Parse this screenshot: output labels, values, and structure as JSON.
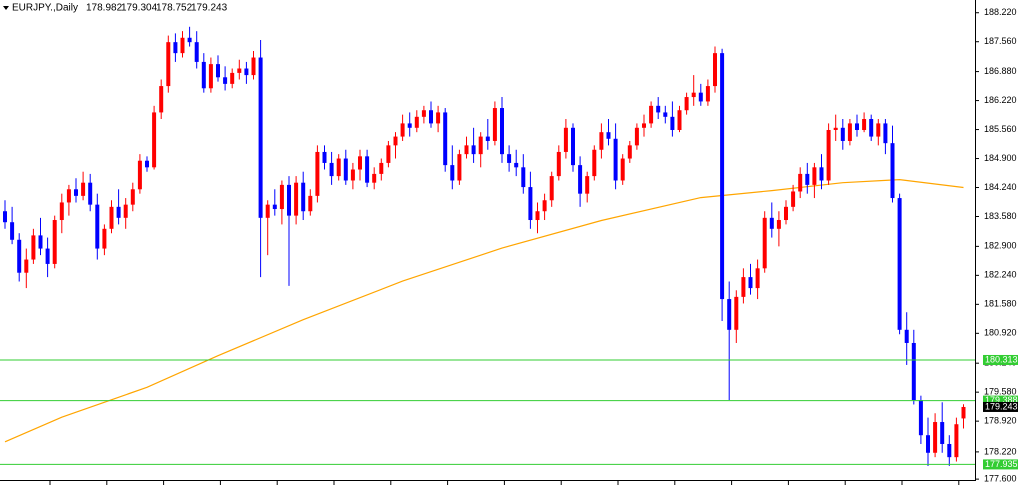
{
  "chart_data": {
    "type": "candlestick",
    "symbol": "EURJPY.,Daily",
    "up_color": "#ff0000",
    "down_color": "#0000ff",
    "ma_color": "#ffa500",
    "level_color": "#32cd32",
    "ylim": [
      177.58,
      188.51
    ],
    "yticks": [
      {
        "value": 188.22,
        "label": "188.220"
      },
      {
        "value": 187.56,
        "label": "187.560"
      },
      {
        "value": 186.88,
        "label": "186.880"
      },
      {
        "value": 186.22,
        "label": "186.220"
      },
      {
        "value": 185.56,
        "label": "185.560"
      },
      {
        "value": 184.9,
        "label": "184.900"
      },
      {
        "value": 184.24,
        "label": "184.240"
      },
      {
        "value": 183.58,
        "label": "183.580"
      },
      {
        "value": 182.9,
        "label": "182.900"
      },
      {
        "value": 182.24,
        "label": "182.240"
      },
      {
        "value": 181.58,
        "label": "181.580"
      },
      {
        "value": 180.92,
        "label": "180.920"
      },
      {
        "value": 180.24,
        "label": "180.240"
      },
      {
        "value": 179.58,
        "label": "179.580"
      },
      {
        "value": 178.92,
        "label": "178.920"
      },
      {
        "value": 178.22,
        "label": "178.220"
      },
      {
        "value": 177.6,
        "label": "177.600"
      }
    ],
    "levels": [
      180.313,
      179.388,
      177.935
    ],
    "ohlc": [
      [
        183.7,
        183.95,
        183.3,
        183.45
      ],
      [
        183.45,
        183.8,
        182.95,
        183.05
      ],
      [
        183.05,
        183.2,
        182.1,
        182.3
      ],
      [
        182.3,
        182.85,
        181.95,
        182.6
      ],
      [
        182.6,
        183.3,
        182.5,
        183.15
      ],
      [
        183.15,
        183.55,
        182.7,
        182.85
      ],
      [
        182.85,
        183.1,
        182.2,
        182.5
      ],
      [
        182.5,
        183.6,
        182.4,
        183.5
      ],
      [
        183.5,
        184.1,
        183.2,
        183.9
      ],
      [
        183.9,
        184.3,
        183.6,
        184.2
      ],
      [
        184.2,
        184.45,
        183.9,
        184.05
      ],
      [
        184.05,
        184.6,
        183.95,
        184.35
      ],
      [
        184.35,
        184.55,
        183.7,
        183.85
      ],
      [
        183.85,
        184.1,
        182.6,
        182.85
      ],
      [
        182.85,
        183.4,
        182.7,
        183.3
      ],
      [
        183.3,
        183.95,
        183.2,
        183.8
      ],
      [
        183.8,
        184.2,
        183.4,
        183.55
      ],
      [
        183.55,
        184.0,
        183.3,
        183.85
      ],
      [
        183.85,
        184.35,
        183.7,
        184.2
      ],
      [
        184.2,
        185.0,
        184.1,
        184.85
      ],
      [
        184.85,
        184.95,
        184.6,
        184.7
      ],
      [
        184.7,
        186.1,
        184.65,
        185.95
      ],
      [
        185.95,
        186.7,
        185.8,
        186.55
      ],
      [
        186.55,
        187.7,
        186.4,
        187.55
      ],
      [
        187.55,
        187.75,
        187.1,
        187.3
      ],
      [
        187.3,
        187.8,
        187.2,
        187.65
      ],
      [
        187.65,
        187.9,
        187.45,
        187.55
      ],
      [
        187.55,
        187.8,
        186.95,
        187.1
      ],
      [
        187.1,
        187.3,
        186.4,
        186.5
      ],
      [
        186.5,
        187.2,
        186.4,
        187.05
      ],
      [
        187.05,
        187.25,
        186.65,
        186.75
      ],
      [
        186.75,
        187.0,
        186.45,
        186.6
      ],
      [
        186.6,
        186.95,
        186.5,
        186.85
      ],
      [
        186.85,
        187.15,
        186.7,
        186.95
      ],
      [
        186.95,
        187.1,
        186.6,
        186.8
      ],
      [
        186.8,
        187.35,
        186.7,
        187.2
      ],
      [
        187.2,
        187.6,
        182.2,
        183.55
      ],
      [
        183.55,
        183.95,
        182.7,
        183.85
      ],
      [
        183.85,
        184.2,
        183.6,
        183.75
      ],
      [
        183.75,
        184.4,
        183.4,
        184.3
      ],
      [
        184.3,
        184.5,
        182.0,
        183.6
      ],
      [
        183.6,
        184.5,
        183.4,
        184.35
      ],
      [
        184.35,
        184.6,
        183.5,
        183.7
      ],
      [
        183.7,
        184.2,
        183.6,
        184.05
      ],
      [
        184.05,
        185.2,
        183.9,
        185.05
      ],
      [
        185.05,
        185.2,
        184.65,
        184.8
      ],
      [
        184.8,
        185.05,
        184.3,
        184.5
      ],
      [
        184.5,
        185.0,
        184.4,
        184.9
      ],
      [
        184.9,
        185.1,
        184.3,
        184.4
      ],
      [
        184.4,
        184.8,
        184.2,
        184.65
      ],
      [
        184.65,
        185.1,
        184.4,
        184.95
      ],
      [
        184.95,
        185.1,
        184.25,
        184.35
      ],
      [
        184.35,
        184.7,
        184.2,
        184.55
      ],
      [
        184.55,
        184.9,
        184.4,
        184.8
      ],
      [
        184.8,
        185.3,
        184.7,
        185.2
      ],
      [
        185.2,
        185.5,
        184.9,
        185.4
      ],
      [
        185.4,
        185.9,
        185.3,
        185.7
      ],
      [
        185.7,
        185.95,
        185.4,
        185.6
      ],
      [
        185.6,
        186.0,
        185.5,
        185.85
      ],
      [
        185.85,
        186.1,
        185.7,
        186.0
      ],
      [
        186.0,
        186.2,
        185.6,
        185.7
      ],
      [
        185.7,
        186.1,
        185.5,
        185.95
      ],
      [
        185.95,
        186.05,
        184.6,
        184.75
      ],
      [
        184.75,
        185.2,
        184.2,
        184.4
      ],
      [
        184.4,
        185.1,
        184.3,
        185.0
      ],
      [
        185.0,
        185.4,
        184.9,
        185.2
      ],
      [
        185.2,
        185.6,
        184.8,
        185.0
      ],
      [
        185.0,
        185.5,
        184.7,
        185.4
      ],
      [
        185.4,
        185.8,
        185.1,
        185.3
      ],
      [
        185.3,
        186.2,
        185.2,
        186.05
      ],
      [
        186.05,
        186.3,
        184.8,
        185.0
      ],
      [
        185.0,
        185.2,
        184.6,
        184.8
      ],
      [
        184.8,
        185.1,
        184.5,
        184.7
      ],
      [
        184.7,
        185.0,
        184.1,
        184.25
      ],
      [
        184.25,
        184.6,
        183.3,
        183.5
      ],
      [
        183.5,
        183.9,
        183.2,
        183.7
      ],
      [
        183.7,
        184.1,
        183.5,
        183.95
      ],
      [
        183.95,
        184.6,
        183.8,
        184.5
      ],
      [
        184.5,
        185.2,
        184.4,
        185.05
      ],
      [
        185.05,
        185.8,
        184.9,
        185.6
      ],
      [
        185.6,
        185.7,
        184.6,
        184.75
      ],
      [
        184.75,
        184.95,
        183.8,
        184.1
      ],
      [
        184.1,
        184.6,
        183.9,
        184.5
      ],
      [
        184.5,
        185.2,
        184.4,
        185.1
      ],
      [
        185.1,
        185.7,
        184.9,
        185.5
      ],
      [
        185.5,
        185.8,
        185.2,
        185.35
      ],
      [
        185.35,
        185.7,
        184.2,
        184.4
      ],
      [
        184.4,
        185.0,
        184.3,
        184.9
      ],
      [
        184.9,
        185.3,
        184.8,
        185.2
      ],
      [
        185.2,
        185.7,
        185.1,
        185.6
      ],
      [
        185.6,
        185.9,
        185.4,
        185.7
      ],
      [
        185.7,
        186.2,
        185.6,
        186.1
      ],
      [
        186.1,
        186.3,
        185.8,
        185.95
      ],
      [
        185.95,
        186.1,
        185.7,
        185.85
      ],
      [
        185.85,
        186.2,
        185.4,
        185.55
      ],
      [
        185.55,
        186.1,
        185.5,
        186.0
      ],
      [
        186.0,
        186.4,
        185.9,
        186.3
      ],
      [
        186.3,
        186.8,
        186.1,
        186.4
      ],
      [
        186.4,
        186.6,
        186.1,
        186.2
      ],
      [
        186.2,
        186.7,
        186.1,
        186.55
      ],
      [
        186.55,
        187.45,
        186.4,
        187.3
      ],
      [
        187.3,
        187.4,
        181.2,
        181.7
      ],
      [
        181.7,
        182.1,
        179.4,
        181.0
      ],
      [
        181.0,
        181.9,
        180.7,
        181.75
      ],
      [
        181.75,
        182.4,
        181.6,
        182.2
      ],
      [
        182.2,
        182.5,
        181.8,
        181.95
      ],
      [
        181.95,
        182.6,
        181.7,
        182.4
      ],
      [
        182.4,
        183.7,
        182.3,
        183.55
      ],
      [
        183.55,
        183.9,
        183.1,
        183.3
      ],
      [
        183.3,
        183.7,
        182.9,
        183.5
      ],
      [
        183.5,
        183.95,
        183.4,
        183.8
      ],
      [
        183.8,
        184.3,
        183.7,
        184.15
      ],
      [
        184.15,
        184.7,
        184.0,
        184.55
      ],
      [
        184.55,
        184.8,
        184.1,
        184.3
      ],
      [
        184.3,
        184.8,
        184.0,
        184.7
      ],
      [
        184.7,
        185.0,
        184.2,
        184.4
      ],
      [
        184.4,
        185.7,
        184.3,
        185.55
      ],
      [
        185.55,
        185.9,
        185.3,
        185.6
      ],
      [
        185.6,
        185.8,
        185.1,
        185.3
      ],
      [
        185.3,
        185.8,
        185.2,
        185.7
      ],
      [
        185.7,
        185.9,
        185.4,
        185.55
      ],
      [
        185.55,
        185.95,
        185.5,
        185.8
      ],
      [
        185.8,
        185.9,
        185.3,
        185.4
      ],
      [
        185.4,
        185.8,
        185.2,
        185.7
      ],
      [
        185.7,
        185.8,
        185.0,
        185.25
      ],
      [
        185.25,
        185.65,
        183.9,
        184.0
      ],
      [
        184.0,
        184.1,
        180.9,
        181.0
      ],
      [
        181.0,
        181.4,
        180.2,
        180.7
      ],
      [
        180.7,
        181.0,
        179.3,
        179.4
      ],
      [
        179.4,
        179.5,
        178.4,
        178.6
      ],
      [
        178.6,
        179.0,
        177.9,
        178.2
      ],
      [
        178.2,
        179.1,
        178.1,
        178.9
      ],
      [
        178.9,
        179.35,
        178.2,
        178.4
      ],
      [
        178.4,
        178.6,
        177.9,
        178.1
      ],
      [
        178.1,
        179.0,
        178.0,
        178.85
      ],
      [
        178.982,
        179.304,
        178.752,
        179.243
      ]
    ],
    "ma": {
      "x": [
        0,
        8,
        20,
        30,
        42,
        56,
        70,
        84,
        98,
        108,
        118,
        126,
        135
      ],
      "values": [
        178.45,
        179.01,
        179.69,
        180.41,
        181.23,
        182.11,
        182.86,
        183.49,
        184.01,
        184.17,
        184.35,
        184.42,
        184.24
      ]
    }
  }
}
